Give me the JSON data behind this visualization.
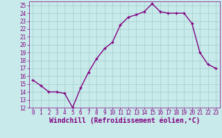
{
  "x": [
    0,
    1,
    2,
    3,
    4,
    5,
    6,
    7,
    8,
    9,
    10,
    11,
    12,
    13,
    14,
    15,
    16,
    17,
    18,
    19,
    20,
    21,
    22,
    23
  ],
  "y": [
    15.5,
    14.8,
    14.0,
    14.0,
    13.8,
    12.0,
    14.5,
    16.5,
    18.2,
    19.5,
    20.3,
    22.5,
    23.5,
    23.8,
    24.2,
    25.2,
    24.2,
    24.0,
    24.0,
    24.0,
    22.7,
    19.0,
    17.5,
    17.0
  ],
  "line_color": "#800080",
  "marker": "+",
  "marker_color": "#800080",
  "bg_color": "#c8eaea",
  "grid_color": "#a0cccc",
  "xlabel": "Windchill (Refroidissement éolien,°C)",
  "xlabel_color": "#800080",
  "ylim": [
    12,
    25.5
  ],
  "xlim": [
    -0.5,
    23.5
  ],
  "yticks": [
    12,
    13,
    14,
    15,
    16,
    17,
    18,
    19,
    20,
    21,
    22,
    23,
    24,
    25
  ],
  "xticks": [
    0,
    1,
    2,
    3,
    4,
    5,
    6,
    7,
    8,
    9,
    10,
    11,
    12,
    13,
    14,
    15,
    16,
    17,
    18,
    19,
    20,
    21,
    22,
    23
  ],
  "tick_color": "#800080",
  "tick_labelsize": 5.5,
  "xlabel_fontsize": 7.0,
  "linewidth": 1.0,
  "markersize": 3.5
}
